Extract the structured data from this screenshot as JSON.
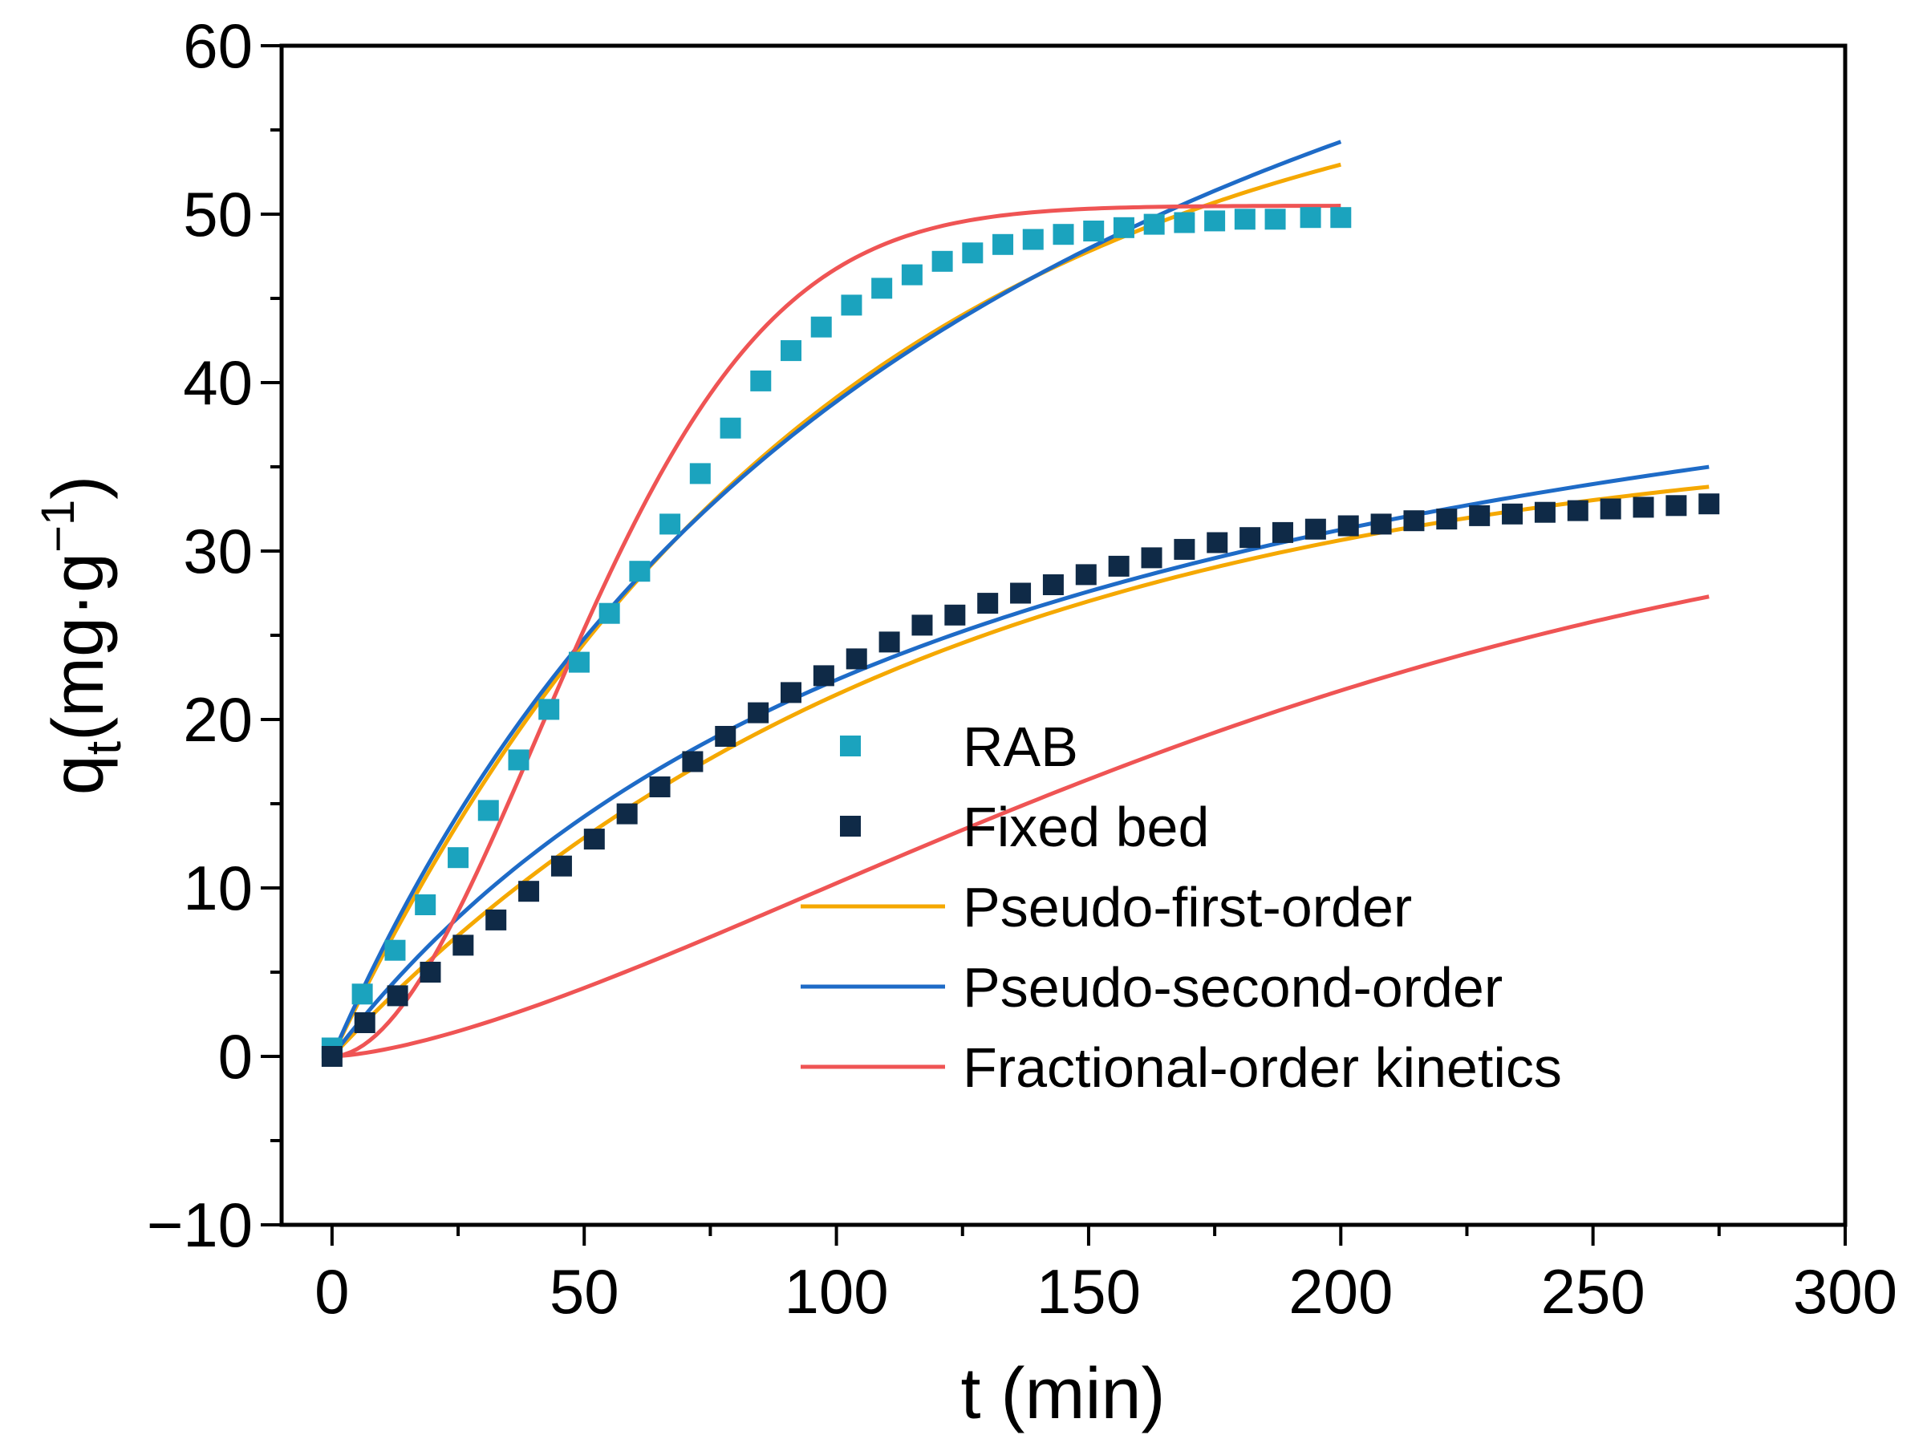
{
  "chart_data": {
    "type": "scatter",
    "title": "",
    "xlabel": "t (min)",
    "ylabel": {
      "main": "q",
      "subscript": "t",
      "units_prefix": "(mg·g",
      "units_superscript": "−1",
      "units_suffix": ")"
    },
    "xlim": [
      -10,
      300
    ],
    "ylim": [
      -10,
      60
    ],
    "x_ticks": [
      0,
      50,
      100,
      150,
      200,
      250,
      300
    ],
    "x_tick_labels": [
      "0",
      "50",
      "100",
      "150",
      "200",
      "250",
      "300"
    ],
    "y_ticks": [
      -10,
      0,
      10,
      20,
      30,
      40,
      50,
      60
    ],
    "y_tick_labels": [
      "−10",
      "0",
      "10",
      "20",
      "30",
      "40",
      "50",
      "60"
    ],
    "grid": false,
    "legend_position": "center-right",
    "colors": {
      "rab": "#1BA3BE",
      "fixed_bed": "#0F2A47",
      "pseudo_first_order": "#F5A800",
      "pseudo_second_order": "#1E6BC7",
      "fractional_order": "#EF5454"
    },
    "scatter_series": [
      {
        "name": "RAB",
        "color": "#1BA3BE",
        "points": [
          [
            0,
            0.5
          ],
          [
            6,
            3.7
          ],
          [
            12.5,
            6.3
          ],
          [
            18.5,
            9.0
          ],
          [
            25,
            11.8
          ],
          [
            31,
            14.6
          ],
          [
            37,
            17.6
          ],
          [
            43,
            20.6
          ],
          [
            49,
            23.4
          ],
          [
            55,
            26.3
          ],
          [
            61,
            28.8
          ],
          [
            67,
            31.6
          ],
          [
            73,
            34.6
          ],
          [
            79,
            37.3
          ],
          [
            85,
            40.1
          ],
          [
            91,
            41.9
          ],
          [
            97,
            43.3
          ],
          [
            103,
            44.6
          ],
          [
            109,
            45.6
          ],
          [
            115,
            46.4
          ],
          [
            121,
            47.2
          ],
          [
            127,
            47.7
          ],
          [
            133,
            48.2
          ],
          [
            139,
            48.5
          ],
          [
            145,
            48.8
          ],
          [
            151,
            49.0
          ],
          [
            157,
            49.2
          ],
          [
            163,
            49.4
          ],
          [
            169,
            49.5
          ],
          [
            175,
            49.6
          ],
          [
            181,
            49.7
          ],
          [
            187,
            49.7
          ],
          [
            194,
            49.8
          ],
          [
            200,
            49.8
          ]
        ]
      },
      {
        "name": "Fixed bed",
        "color": "#0F2A47",
        "points": [
          [
            0,
            0
          ],
          [
            6.5,
            2.0
          ],
          [
            13,
            3.6
          ],
          [
            19.5,
            5.0
          ],
          [
            26,
            6.6
          ],
          [
            32.5,
            8.1
          ],
          [
            39,
            9.8
          ],
          [
            45.5,
            11.3
          ],
          [
            52,
            12.9
          ],
          [
            58.5,
            14.4
          ],
          [
            65,
            16.0
          ],
          [
            71.5,
            17.5
          ],
          [
            78,
            19.0
          ],
          [
            84.5,
            20.4
          ],
          [
            91,
            21.6
          ],
          [
            97.5,
            22.6
          ],
          [
            104,
            23.6
          ],
          [
            110.5,
            24.6
          ],
          [
            117,
            25.6
          ],
          [
            123.5,
            26.2
          ],
          [
            130,
            26.9
          ],
          [
            136.5,
            27.5
          ],
          [
            143,
            28.0
          ],
          [
            149.5,
            28.6
          ],
          [
            156,
            29.1
          ],
          [
            162.5,
            29.6
          ],
          [
            169,
            30.1
          ],
          [
            175.5,
            30.5
          ],
          [
            182,
            30.8
          ],
          [
            188.5,
            31.1
          ],
          [
            195,
            31.3
          ],
          [
            201.5,
            31.5
          ],
          [
            208,
            31.6
          ],
          [
            214.5,
            31.8
          ],
          [
            221,
            31.9
          ],
          [
            227.5,
            32.1
          ],
          [
            234,
            32.2
          ],
          [
            240.5,
            32.3
          ],
          [
            247,
            32.4
          ],
          [
            253.5,
            32.5
          ],
          [
            260,
            32.6
          ],
          [
            266.5,
            32.7
          ],
          [
            273,
            32.8
          ]
        ]
      }
    ],
    "line_series": [
      {
        "name": "Pseudo-first-order",
        "color": "#F5A800",
        "curves": [
          {
            "model": "pfo",
            "qe": 60.5,
            "k": 0.0104,
            "t_end": 200
          },
          {
            "model": "pfo",
            "qe": 37.5,
            "k": 0.0085,
            "t_end": 273
          }
        ]
      },
      {
        "name": "Pseudo-second-order",
        "color": "#1E6BC7",
        "curves": [
          {
            "model": "pso",
            "qe": 90.0,
            "k": 8.45e-05,
            "t_end": 200
          },
          {
            "model": "pso",
            "qe": 52.0,
            "k": 0.000145,
            "t_end": 273
          }
        ]
      },
      {
        "name": "Fractional-order kinetics",
        "color": "#EF5454",
        "curves": [
          {
            "model": "frac",
            "qe": 50.5,
            "k": 0.000413,
            "n": 1.9,
            "t_end": 200
          },
          {
            "model": "frac",
            "qe": 34.0,
            "k": 0.00036,
            "n": 1.5,
            "t_end": 273
          }
        ]
      }
    ],
    "legend": [
      {
        "label": "RAB",
        "kind": "marker",
        "color": "#1BA3BE"
      },
      {
        "label": "Fixed bed",
        "kind": "marker",
        "color": "#0F2A47"
      },
      {
        "label": "Pseudo-first-order",
        "kind": "line",
        "color": "#F5A800"
      },
      {
        "label": "Pseudo-second-order",
        "kind": "line",
        "color": "#1E6BC7"
      },
      {
        "label": "Fractional-order kinetics",
        "kind": "line",
        "color": "#EF5454"
      }
    ]
  }
}
